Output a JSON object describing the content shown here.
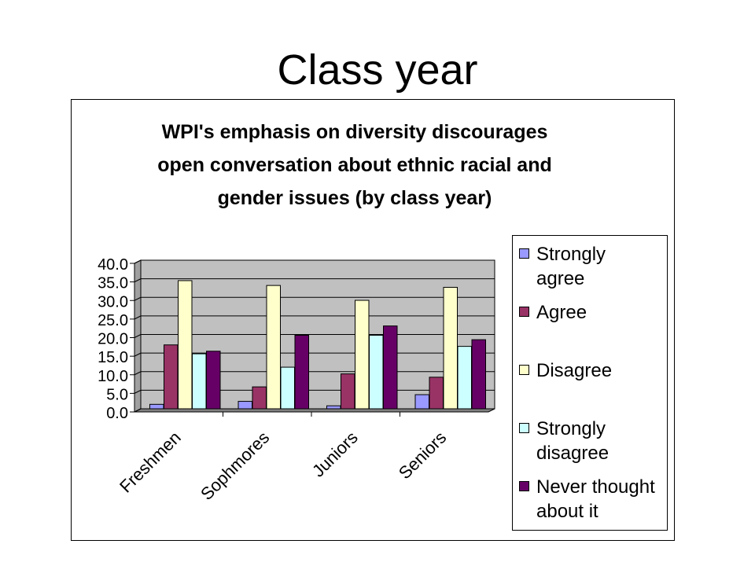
{
  "slide": {
    "title": "Class year"
  },
  "chart_data": {
    "type": "bar",
    "title_lines": [
      "WPI's emphasis on diversity discourages",
      "open conversation about ethnic racial and",
      "gender issues (by class year)"
    ],
    "categories": [
      "Freshmen",
      "Sophmores",
      "Juniors",
      "Seniors"
    ],
    "series": [
      {
        "name": "Strongly agree",
        "label_lines": [
          "Strongly",
          "agree"
        ],
        "color": "#9999ff",
        "values": [
          1.2,
          2.0,
          0.8,
          3.8
        ]
      },
      {
        "name": "Agree",
        "label_lines": [
          "Agree"
        ],
        "color": "#993366",
        "values": [
          17.2,
          5.9,
          9.4,
          8.5
        ]
      },
      {
        "name": "Disagree",
        "label_lines": [
          "Disagree"
        ],
        "color": "#ffffcc",
        "values": [
          34.5,
          33.2,
          29.2,
          32.7
        ]
      },
      {
        "name": "Strongly disagree",
        "label_lines": [
          "Strongly",
          "disagree"
        ],
        "color": "#ccffff",
        "values": [
          14.8,
          11.2,
          19.8,
          16.8
        ]
      },
      {
        "name": "Never thought about it",
        "label_lines": [
          "Never thought",
          "about it"
        ],
        "color": "#660066",
        "values": [
          15.5,
          19.8,
          22.3,
          18.6
        ]
      }
    ],
    "yticks": [
      "0.0",
      "5.0",
      "10.0",
      "15.0",
      "20.0",
      "25.0",
      "30.0",
      "35.0",
      "40.0"
    ],
    "ylim": [
      0,
      40
    ],
    "xlabel": "",
    "ylabel": "",
    "plot_background": "#c0c0c0",
    "legend_position": "right",
    "grid": true
  }
}
